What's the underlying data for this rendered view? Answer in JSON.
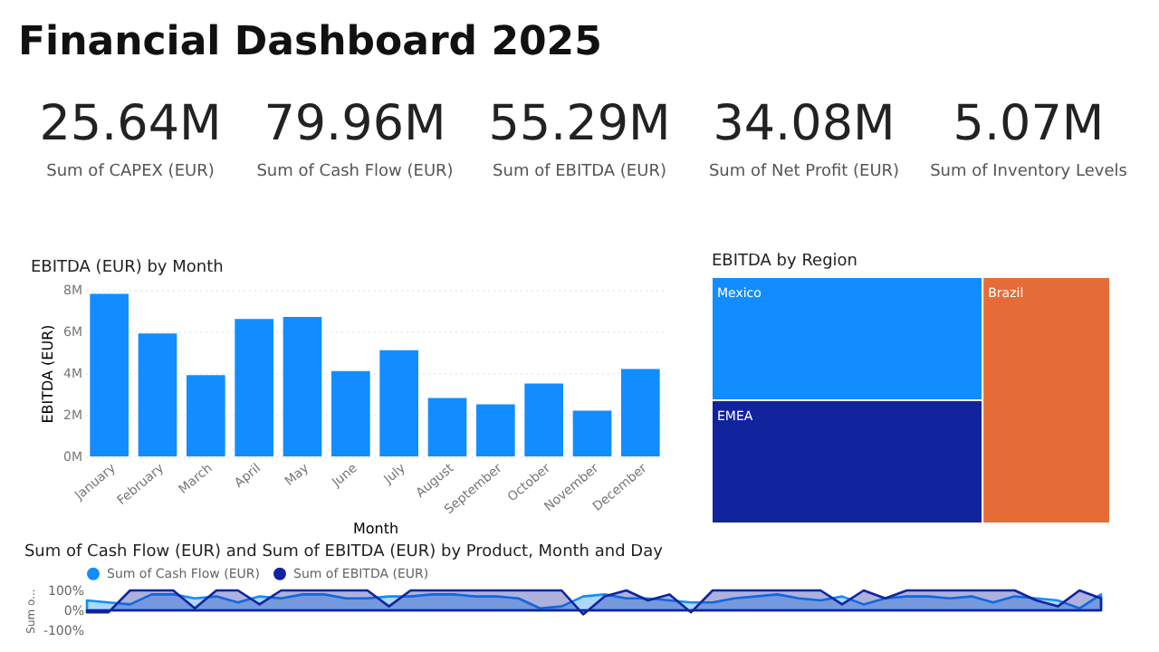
{
  "chart_data": [
    {
      "type": "other",
      "title": "Financial Dashboard 2025",
      "annotations": [
        "25.64M",
        "Sum of CAPEX (EUR)",
        "79.96M",
        "Sum of Cash Flow (EUR)",
        "55.29M",
        "Sum of EBITDA (EUR)",
        "34.08M",
        "Sum of Net Profit (EUR)",
        "5.07M",
        "Sum of Inventory Levels"
      ]
    },
    {
      "type": "bar",
      "title": "EBITDA (EUR) by Month",
      "xlabel": "Month",
      "ylabel": "EBITDA (EUR)",
      "categories": [
        "January",
        "February",
        "March",
        "April",
        "May",
        "June",
        "July",
        "August",
        "September",
        "October",
        "November",
        "December"
      ],
      "values": [
        7800000,
        5900000,
        3900000,
        6600000,
        6700000,
        4100000,
        5100000,
        2800000,
        2500000,
        3500000,
        2200000,
        4200000
      ],
      "color": "#118dff",
      "ylim": [
        0,
        8000000
      ],
      "yticks": [
        {
          "value": 0,
          "label": "0M"
        },
        {
          "value": 2000000,
          "label": "2M"
        },
        {
          "value": 4000000,
          "label": "4M"
        },
        {
          "value": 6000000,
          "label": "6M"
        },
        {
          "value": 8000000,
          "label": "8M"
        }
      ],
      "grid": "y"
    },
    {
      "type": "other",
      "title": "EBITDA by Region",
      "categories": [
        "Mexico",
        "EMEA",
        "Brazil"
      ],
      "colors": [
        "#118dff",
        "#12239e",
        "#e66c37"
      ]
    },
    {
      "type": "area",
      "title": "Sum of Cash Flow (EUR) and Sum of EBITDA (EUR) by Product, Month and Day",
      "ylabel": "Sum o...",
      "categories": [
        null,
        null,
        null,
        null,
        null,
        null,
        null,
        null,
        null,
        null,
        null,
        null,
        null,
        null,
        null,
        null,
        null,
        null,
        null,
        null,
        null,
        null,
        null,
        null,
        null,
        null,
        null,
        null,
        null,
        null,
        null,
        null,
        null,
        null,
        null,
        null,
        null,
        null,
        null,
        null,
        null,
        null,
        null,
        null,
        null,
        null,
        null,
        null
      ],
      "series": [
        {
          "name": "Sum of Cash Flow (EUR)",
          "color": "#118dff",
          "values": [
            50,
            40,
            30,
            80,
            80,
            60,
            70,
            40,
            70,
            60,
            80,
            80,
            60,
            60,
            70,
            70,
            80,
            80,
            70,
            70,
            60,
            10,
            20,
            70,
            80,
            60,
            60,
            50,
            40,
            40,
            60,
            70,
            80,
            60,
            50,
            70,
            30,
            60,
            70,
            70,
            60,
            70,
            40,
            70,
            60,
            50,
            10,
            80
          ]
        },
        {
          "name": "Sum of EBITDA (EUR)",
          "color": "#12239e",
          "values": [
            -10,
            -10,
            100,
            100,
            100,
            10,
            100,
            100,
            30,
            100,
            100,
            100,
            100,
            100,
            20,
            100,
            100,
            100,
            100,
            100,
            100,
            100,
            100,
            -20,
            70,
            100,
            50,
            80,
            -10,
            100,
            100,
            100,
            100,
            100,
            100,
            30,
            100,
            60,
            100,
            100,
            100,
            100,
            100,
            100,
            50,
            20,
            100,
            60
          ]
        }
      ],
      "ylim": [
        -100,
        100
      ],
      "yticks": [
        {
          "value": -100,
          "label": "-100%"
        },
        {
          "value": 0,
          "label": "0%"
        },
        {
          "value": 100,
          "label": "100%"
        }
      ],
      "legend": "top left",
      "tick_labels": "y",
      "marker": "none"
    }
  ]
}
